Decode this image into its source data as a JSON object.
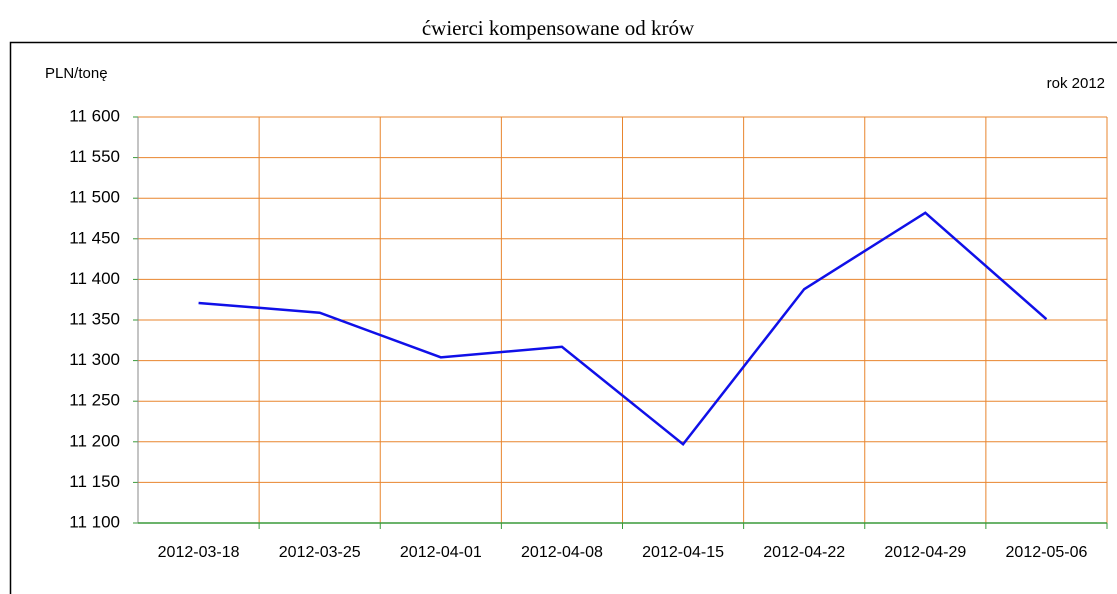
{
  "chart_data": {
    "type": "line",
    "title": "ćwierci kompensowane od krów",
    "y_axis_label": "PLN/tonę",
    "annotation": "rok 2012",
    "categories": [
      "2012-03-18",
      "2012-03-25",
      "2012-04-01",
      "2012-04-08",
      "2012-04-15",
      "2012-04-22",
      "2012-04-29",
      "2012-05-06"
    ],
    "series": [
      {
        "name": "ćwierci kompensowane od krów",
        "color": "#1010e8",
        "values": [
          11371,
          11359,
          11304,
          11317,
          11197,
          11388,
          11482,
          11351
        ]
      }
    ],
    "ylim": [
      11100,
      11600
    ],
    "yticks": [
      {
        "value": 11100,
        "label": "11 100"
      },
      {
        "value": 11150,
        "label": "11 150"
      },
      {
        "value": 11200,
        "label": "11 200"
      },
      {
        "value": 11250,
        "label": "11 250"
      },
      {
        "value": 11300,
        "label": "11 300"
      },
      {
        "value": 11350,
        "label": "11 350"
      },
      {
        "value": 11400,
        "label": "11 400"
      },
      {
        "value": 11450,
        "label": "11 450"
      },
      {
        "value": 11500,
        "label": "11 500"
      },
      {
        "value": 11550,
        "label": "11 550"
      },
      {
        "value": 11600,
        "label": "11 600"
      }
    ],
    "grid": true,
    "grid_color": "#e8852e",
    "axis_color": "#3a9a3a",
    "legend": false
  }
}
